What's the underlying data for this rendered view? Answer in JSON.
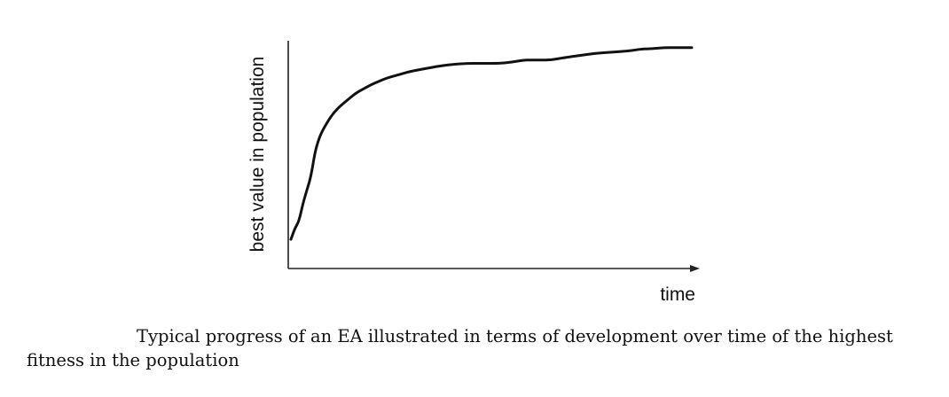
{
  "chart_data": {
    "type": "line",
    "title": "",
    "xlabel": "time",
    "ylabel": "best value in population",
    "xlim": [
      0,
      100
    ],
    "ylim": [
      0,
      100
    ],
    "grid": false,
    "legend": "none",
    "x_ticks": [],
    "y_ticks": [],
    "series": [
      {
        "x": [
          0,
          1,
          2,
          3,
          4,
          5,
          6,
          7,
          8,
          10,
          12,
          14,
          16,
          18,
          20,
          22,
          24,
          26,
          28,
          30,
          33,
          36,
          40,
          44,
          48,
          52,
          55,
          58,
          60,
          62,
          65,
          68,
          72,
          76,
          80,
          84,
          86,
          88,
          90,
          93,
          96,
          100
        ],
        "values": [
          13,
          18,
          21,
          29,
          35,
          41,
          52,
          58,
          62,
          68,
          72,
          75,
          78,
          80,
          82,
          83.5,
          85,
          86,
          87,
          88,
          89,
          90,
          91,
          91.5,
          91.5,
          91.5,
          92,
          93,
          93,
          93,
          93,
          94,
          95,
          96,
          96.5,
          97,
          97.5,
          98,
          98,
          98.5,
          98.5,
          98.5
        ]
      }
    ]
  },
  "caption": "Typical progress of an EA illustrated in terms of development over time of the highest fitness in the population",
  "colors": {
    "line": "#111111",
    "axis": "#222222",
    "text": "#111111"
  }
}
